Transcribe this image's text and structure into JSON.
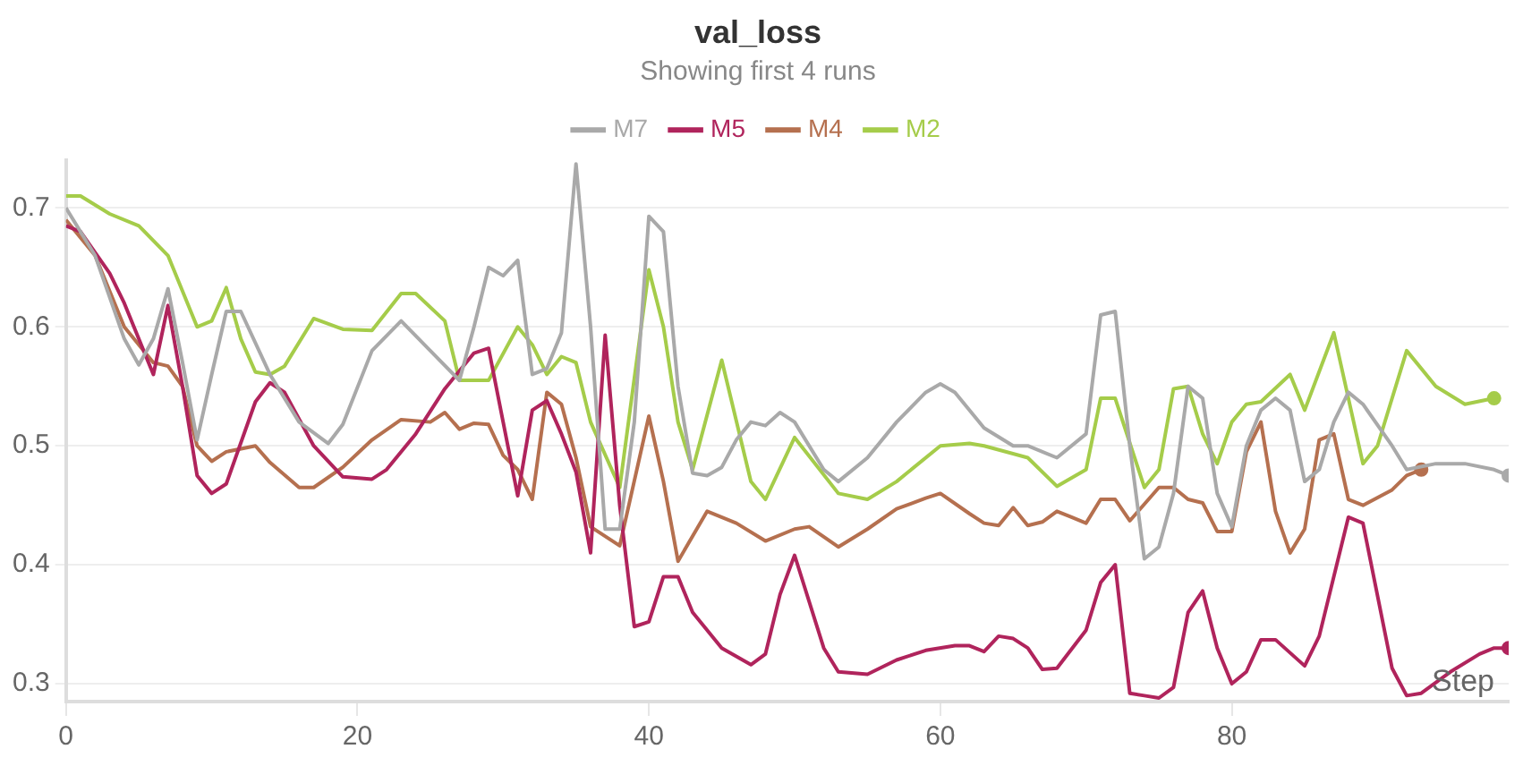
{
  "chart_data": {
    "type": "line",
    "title": "val_loss",
    "subtitle": "Showing first 4 runs",
    "xlabel": "Step",
    "xlim": [
      0,
      99
    ],
    "xticks": [
      0,
      20,
      40,
      60,
      80
    ],
    "ylim": [
      0.285,
      0.74
    ],
    "yticks": [
      0.3,
      0.4,
      0.5,
      0.6,
      0.7
    ],
    "grid": "y",
    "legend": "top",
    "series": [
      {
        "name": "M7",
        "color": "#a9a9a9",
        "x": [
          0,
          2,
          4,
          5,
          6,
          7,
          8,
          9,
          10,
          11,
          12,
          14,
          16,
          18,
          19,
          21,
          23,
          25,
          27,
          28,
          29,
          30,
          31,
          32,
          33,
          34,
          35,
          36,
          37,
          38,
          39,
          40,
          41,
          42,
          43,
          44,
          45,
          46,
          47,
          48,
          49,
          50,
          52,
          53,
          55,
          57,
          59,
          60,
          61,
          63,
          65,
          66,
          68,
          70,
          71,
          72,
          73,
          74,
          75,
          76,
          77,
          78,
          79,
          80,
          81,
          82,
          83,
          84,
          85,
          86,
          87,
          88,
          89,
          91,
          92,
          94,
          96,
          98,
          99
        ],
        "values": [
          0.7,
          0.66,
          0.59,
          0.568,
          0.59,
          0.632,
          0.57,
          0.505,
          0.56,
          0.613,
          0.613,
          0.56,
          0.52,
          0.502,
          0.518,
          0.58,
          0.605,
          0.58,
          0.555,
          0.6,
          0.65,
          0.643,
          0.656,
          0.56,
          0.565,
          0.595,
          0.737,
          0.6,
          0.43,
          0.43,
          0.52,
          0.693,
          0.68,
          0.55,
          0.477,
          0.475,
          0.482,
          0.505,
          0.52,
          0.517,
          0.528,
          0.52,
          0.48,
          0.47,
          0.49,
          0.52,
          0.545,
          0.552,
          0.545,
          0.515,
          0.5,
          0.5,
          0.49,
          0.51,
          0.61,
          0.613,
          0.5,
          0.405,
          0.415,
          0.46,
          0.55,
          0.54,
          0.46,
          0.432,
          0.5,
          0.53,
          0.54,
          0.53,
          0.47,
          0.48,
          0.52,
          0.545,
          0.535,
          0.5,
          0.48,
          0.485,
          0.485,
          0.48,
          0.475
        ]
      },
      {
        "name": "M5",
        "color": "#b0245c",
        "x": [
          0,
          1,
          3,
          4,
          6,
          7,
          8,
          9,
          10,
          11,
          13,
          14,
          15,
          17,
          19,
          21,
          22,
          24,
          26,
          28,
          29,
          30,
          31,
          32,
          33,
          34,
          35,
          36,
          37,
          38,
          39,
          40,
          41,
          42,
          43,
          45,
          47,
          48,
          49,
          50,
          52,
          53,
          55,
          57,
          59,
          61,
          62,
          63,
          64,
          65,
          66,
          67,
          68,
          70,
          71,
          72,
          73,
          74,
          75,
          76,
          77,
          78,
          79,
          80,
          81,
          82,
          83,
          85,
          86,
          88,
          89,
          91,
          92,
          93,
          95,
          97,
          98,
          99
        ],
        "values": [
          0.685,
          0.68,
          0.645,
          0.62,
          0.56,
          0.618,
          0.55,
          0.475,
          0.46,
          0.468,
          0.537,
          0.553,
          0.545,
          0.5,
          0.474,
          0.472,
          0.48,
          0.51,
          0.548,
          0.578,
          0.582,
          0.52,
          0.458,
          0.53,
          0.538,
          0.51,
          0.478,
          0.41,
          0.593,
          0.45,
          0.348,
          0.352,
          0.39,
          0.39,
          0.36,
          0.33,
          0.316,
          0.325,
          0.375,
          0.408,
          0.33,
          0.31,
          0.308,
          0.32,
          0.328,
          0.332,
          0.332,
          0.327,
          0.34,
          0.338,
          0.33,
          0.312,
          0.313,
          0.345,
          0.385,
          0.4,
          0.292,
          0.29,
          0.288,
          0.297,
          0.36,
          0.378,
          0.33,
          0.3,
          0.31,
          0.337,
          0.337,
          0.315,
          0.34,
          0.44,
          0.435,
          0.313,
          0.29,
          0.292,
          0.31,
          0.325,
          0.33,
          0.33
        ]
      },
      {
        "name": "M4",
        "color": "#b5704f",
        "x": [
          0,
          2,
          4,
          6,
          7,
          8,
          9,
          10,
          11,
          13,
          14,
          16,
          17,
          19,
          21,
          23,
          25,
          26,
          27,
          28,
          29,
          30,
          31,
          32,
          33,
          34,
          35,
          36,
          38,
          40,
          41,
          42,
          44,
          46,
          48,
          50,
          51,
          53,
          55,
          57,
          59,
          60,
          62,
          63,
          64,
          65,
          66,
          67,
          68,
          69,
          70,
          71,
          72,
          73,
          75,
          76,
          77,
          78,
          79,
          80,
          81,
          82,
          83,
          84,
          85,
          86,
          87,
          88,
          89,
          91,
          92,
          93
        ],
        "values": [
          0.69,
          0.66,
          0.6,
          0.57,
          0.567,
          0.55,
          0.5,
          0.487,
          0.495,
          0.5,
          0.486,
          0.465,
          0.465,
          0.482,
          0.505,
          0.522,
          0.52,
          0.528,
          0.514,
          0.519,
          0.518,
          0.492,
          0.48,
          0.455,
          0.545,
          0.535,
          0.49,
          0.432,
          0.416,
          0.525,
          0.47,
          0.403,
          0.445,
          0.435,
          0.42,
          0.43,
          0.432,
          0.415,
          0.43,
          0.447,
          0.456,
          0.46,
          0.443,
          0.435,
          0.433,
          0.448,
          0.433,
          0.436,
          0.445,
          0.44,
          0.435,
          0.455,
          0.455,
          0.437,
          0.465,
          0.465,
          0.455,
          0.452,
          0.428,
          0.428,
          0.495,
          0.52,
          0.445,
          0.41,
          0.43,
          0.505,
          0.51,
          0.455,
          0.45,
          0.463,
          0.475,
          0.48
        ]
      },
      {
        "name": "M2",
        "color": "#a5cc4a",
        "x": [
          0,
          1,
          3,
          5,
          7,
          9,
          10,
          11,
          12,
          13,
          14,
          15,
          17,
          19,
          21,
          23,
          24,
          26,
          27,
          29,
          31,
          32,
          33,
          34,
          35,
          36,
          38,
          40,
          41,
          42,
          43,
          45,
          47,
          48,
          50,
          53,
          55,
          57,
          60,
          62,
          63,
          66,
          68,
          70,
          71,
          72,
          74,
          75,
          76,
          77,
          78,
          79,
          80,
          81,
          82,
          84,
          85,
          87,
          89,
          90,
          92,
          94,
          96,
          98
        ],
        "values": [
          0.71,
          0.71,
          0.695,
          0.685,
          0.66,
          0.6,
          0.605,
          0.633,
          0.59,
          0.562,
          0.56,
          0.567,
          0.607,
          0.598,
          0.597,
          0.628,
          0.628,
          0.605,
          0.555,
          0.555,
          0.6,
          0.585,
          0.56,
          0.575,
          0.57,
          0.52,
          0.465,
          0.648,
          0.6,
          0.52,
          0.48,
          0.572,
          0.47,
          0.455,
          0.507,
          0.46,
          0.455,
          0.47,
          0.5,
          0.502,
          0.5,
          0.49,
          0.466,
          0.48,
          0.54,
          0.54,
          0.465,
          0.48,
          0.548,
          0.55,
          0.51,
          0.485,
          0.52,
          0.535,
          0.537,
          0.56,
          0.53,
          0.595,
          0.485,
          0.5,
          0.58,
          0.55,
          0.535,
          0.54
        ]
      }
    ]
  }
}
